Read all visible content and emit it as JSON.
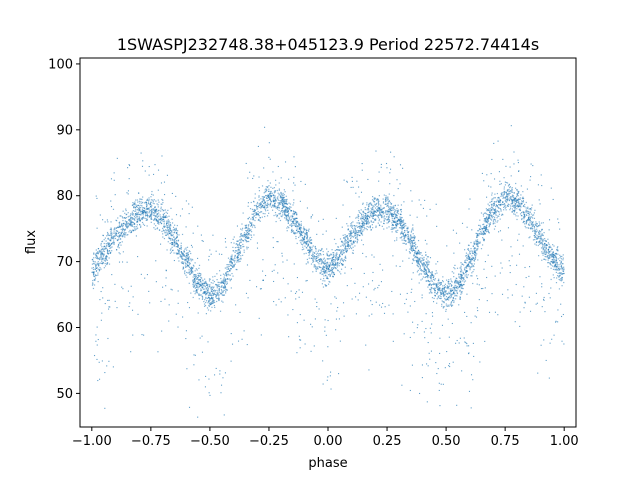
{
  "chart_data": {
    "type": "scatter",
    "title": "1SWASPJ232748.38+045123.9 Period 22572.74414s",
    "xlabel": "phase",
    "ylabel": "flux",
    "xlim": [
      -1.05,
      1.05
    ],
    "ylim": [
      44.9,
      100.9
    ],
    "xticks": [
      -1.0,
      -0.75,
      -0.5,
      -0.25,
      0.0,
      0.25,
      0.5,
      0.75,
      1.0
    ],
    "xtick_labels": [
      "−1.00",
      "−0.75",
      "−0.50",
      "−0.25",
      "0.00",
      "0.25",
      "0.50",
      "0.75",
      "1.00"
    ],
    "yticks": [
      50,
      60,
      70,
      80,
      90,
      100
    ],
    "ytick_labels": [
      "50",
      "60",
      "70",
      "80",
      "90",
      "100"
    ],
    "grid": false,
    "marker_color": "#1f77b4",
    "curve": {
      "description": "folded light curve, two cycles over phase -1 to 1",
      "phase": [
        -1.0,
        -0.75,
        -0.5,
        -0.25,
        0.0,
        0.25,
        0.5,
        0.75,
        1.0
      ],
      "flux": [
        68.5,
        77.8,
        64.8,
        79.8,
        68.8,
        77.8,
        64.8,
        79.8,
        68.5
      ]
    },
    "series": [
      {
        "values": [
          [
            -1.0,
            68.5
          ],
          [
            -0.95,
            71.2
          ],
          [
            -0.9,
            73.8
          ],
          [
            -0.85,
            76.0
          ],
          [
            -0.8,
            77.5
          ],
          [
            -0.75,
            77.8
          ],
          [
            -0.7,
            76.5
          ],
          [
            -0.65,
            73.5
          ],
          [
            -0.6,
            70.0
          ],
          [
            -0.55,
            66.8
          ],
          [
            -0.5,
            64.8
          ],
          [
            -0.45,
            66.0
          ],
          [
            -0.4,
            69.8
          ],
          [
            -0.35,
            74.0
          ],
          [
            -0.3,
            77.8
          ],
          [
            -0.25,
            79.8
          ],
          [
            -0.2,
            79.0
          ],
          [
            -0.15,
            76.5
          ],
          [
            -0.1,
            73.5
          ],
          [
            -0.05,
            70.5
          ],
          [
            0.0,
            68.8
          ],
          [
            0.05,
            71.0
          ],
          [
            0.1,
            73.8
          ],
          [
            0.15,
            76.2
          ],
          [
            0.2,
            77.6
          ],
          [
            0.25,
            77.8
          ],
          [
            0.3,
            76.2
          ],
          [
            0.35,
            73.0
          ],
          [
            0.4,
            69.5
          ],
          [
            0.45,
            66.5
          ],
          [
            0.5,
            64.8
          ],
          [
            0.55,
            66.2
          ],
          [
            0.6,
            70.0
          ],
          [
            0.65,
            74.2
          ],
          [
            0.7,
            77.8
          ],
          [
            0.75,
            79.8
          ],
          [
            0.8,
            79.0
          ],
          [
            0.85,
            76.5
          ],
          [
            0.9,
            73.5
          ],
          [
            0.95,
            70.5
          ],
          [
            1.0,
            68.5
          ]
        ]
      }
    ]
  }
}
